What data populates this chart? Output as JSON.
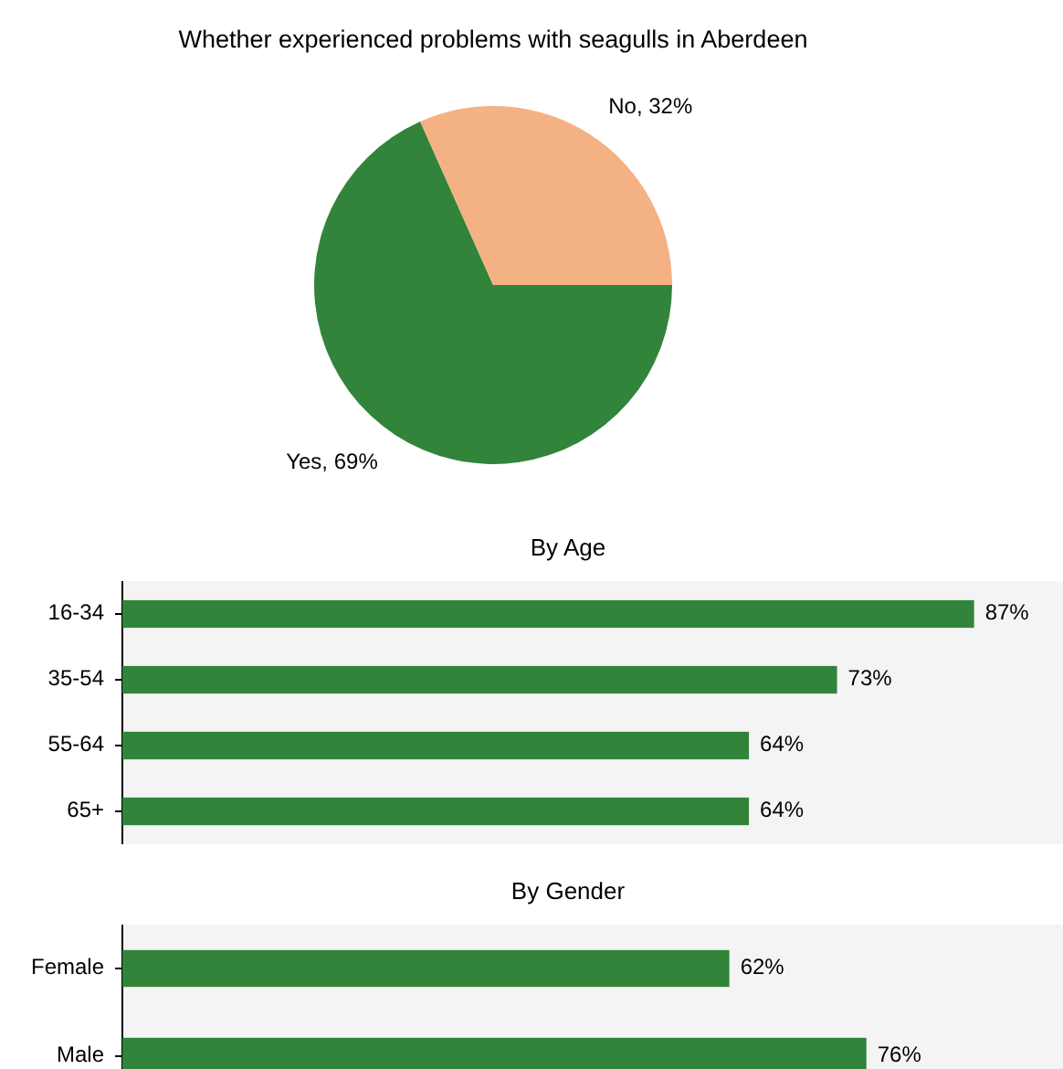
{
  "chart_data": [
    {
      "type": "pie",
      "title": "Whether experienced problems with seagulls in Aberdeen",
      "categories": [
        "Yes",
        "No"
      ],
      "values": [
        69,
        32
      ],
      "colors": [
        "#31843a",
        "#f4b183"
      ],
      "value_labels": [
        "69%",
        "32%"
      ]
    },
    {
      "type": "bar",
      "orientation": "horizontal",
      "title": "By Age",
      "categories": [
        "16-34",
        "35-54",
        "55-64",
        "65+"
      ],
      "values": [
        87,
        73,
        64,
        64
      ],
      "color": "#31843a",
      "value_labels": [
        "87%",
        "73%",
        "64%",
        "64%"
      ]
    },
    {
      "type": "bar",
      "orientation": "horizontal",
      "title": "By Gender",
      "categories": [
        "Female",
        "Male"
      ],
      "values": [
        62,
        76
      ],
      "color": "#31843a",
      "value_labels": [
        "62%",
        "76%"
      ]
    }
  ]
}
